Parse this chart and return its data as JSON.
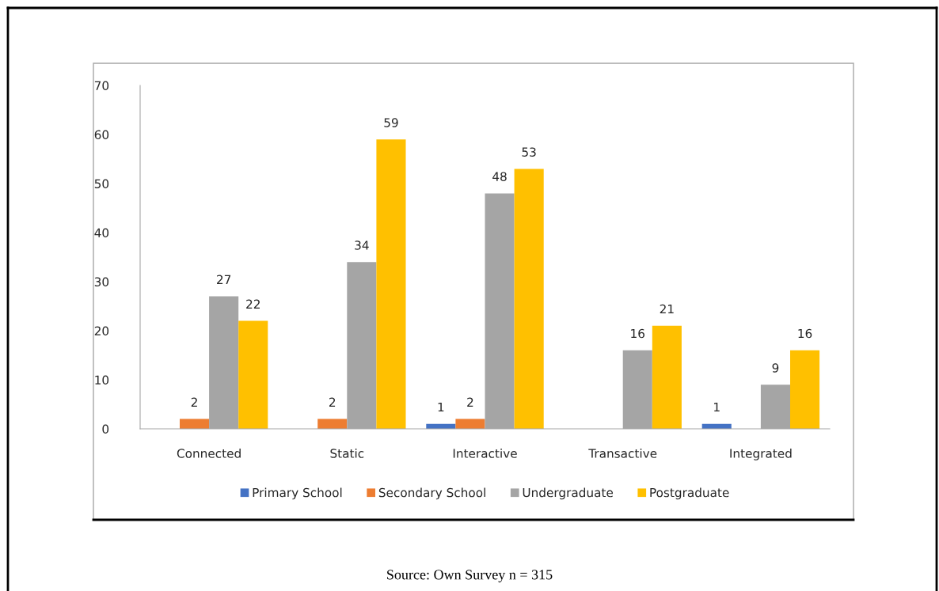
{
  "chart_data": {
    "type": "bar",
    "categories": [
      "Connected",
      "Static",
      "Interactive",
      "Transactive",
      "Integrated"
    ],
    "series": [
      {
        "name": "Primary School",
        "color": "#4472c4",
        "values": [
          null,
          null,
          1,
          null,
          1
        ]
      },
      {
        "name": "Secondary School",
        "color": "#ed7d31",
        "values": [
          2,
          2,
          2,
          null,
          null
        ]
      },
      {
        "name": "Undergraduate",
        "color": "#a5a5a5",
        "values": [
          27,
          34,
          48,
          16,
          9
        ]
      },
      {
        "name": "Postgraduate",
        "color": "#ffc000",
        "values": [
          22,
          59,
          53,
          21,
          16
        ]
      }
    ],
    "ylim": [
      0,
      70
    ],
    "yticks": [
      0,
      10,
      20,
      30,
      40,
      50,
      60,
      70
    ],
    "grid": false,
    "legend": "bottom",
    "data_labels": true,
    "annotations": [
      "Source: Own Survey n = 315"
    ]
  }
}
